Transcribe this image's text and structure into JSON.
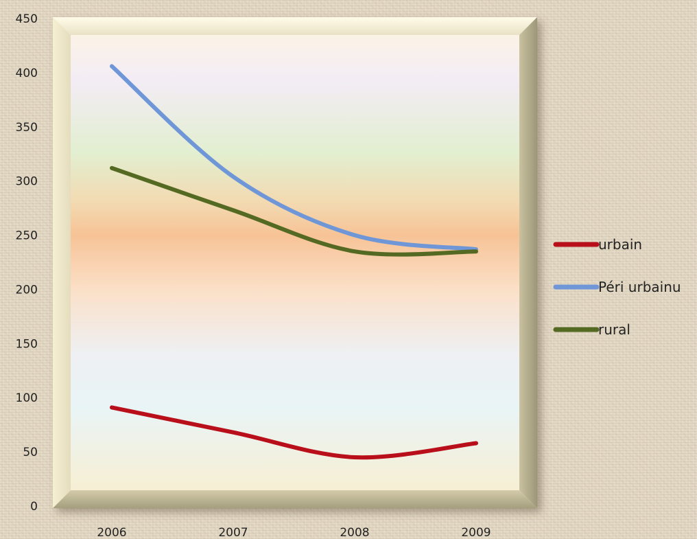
{
  "chart_data": {
    "type": "line",
    "categories": [
      "2006",
      "2007",
      "2008",
      "2009"
    ],
    "ylim": [
      0,
      450
    ],
    "yticks": [
      0,
      50,
      100,
      150,
      200,
      250,
      300,
      350,
      400,
      450
    ],
    "legend_position": "right",
    "series": [
      {
        "name": "urbain",
        "color": "#b80f1a",
        "values": [
          91,
          68,
          45,
          58
        ]
      },
      {
        "name": "Péri urbainu",
        "color": "#6f97d8",
        "values": [
          406,
          304,
          250,
          237
        ]
      },
      {
        "name": "rural",
        "color": "#546a22",
        "values": [
          312,
          273,
          235,
          235
        ]
      }
    ]
  }
}
